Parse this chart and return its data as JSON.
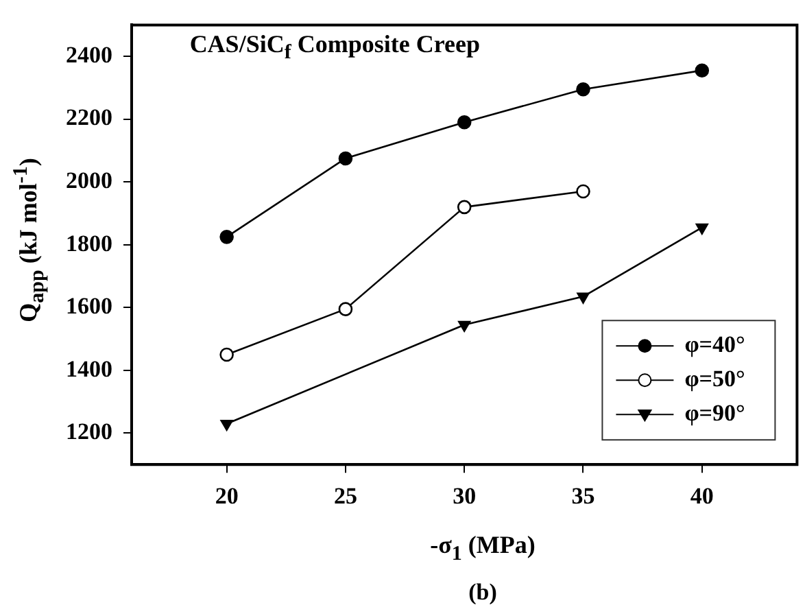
{
  "chart_data": {
    "type": "line",
    "title": "CAS/SiC$_{f}$ Composite Creep",
    "xlabel": "-σ$_{1}$ (MPa)",
    "ylabel": "Q$_{app}$ (kJ mol$^{-1}$)",
    "annotations": [
      "(b)"
    ],
    "xlim": [
      16,
      44
    ],
    "xticks": [
      20,
      25,
      30,
      35,
      40
    ],
    "ylim": [
      1100,
      2500
    ],
    "yticks": [
      1200,
      1400,
      1600,
      1800,
      2000,
      2200,
      2400
    ],
    "grid": false,
    "legend": "bottom right",
    "line_style": "solid",
    "series": [
      {
        "name": "φ=40°",
        "color": "#000000",
        "marker": "circle",
        "x": [
          20,
          25,
          30,
          35,
          40
        ],
        "values": [
          1825,
          2075,
          2190,
          2295,
          2355
        ]
      },
      {
        "name": "φ=50°",
        "color": "#000000",
        "marker": "circle_open",
        "x": [
          20,
          25,
          30,
          35
        ],
        "values": [
          1450,
          1595,
          1920,
          1970
        ]
      },
      {
        "name": "φ=90°",
        "color": "#000000",
        "marker": "triangle_down",
        "x": [
          20,
          30,
          35,
          40
        ],
        "values": [
          1230,
          1545,
          1635,
          1855
        ]
      }
    ]
  }
}
